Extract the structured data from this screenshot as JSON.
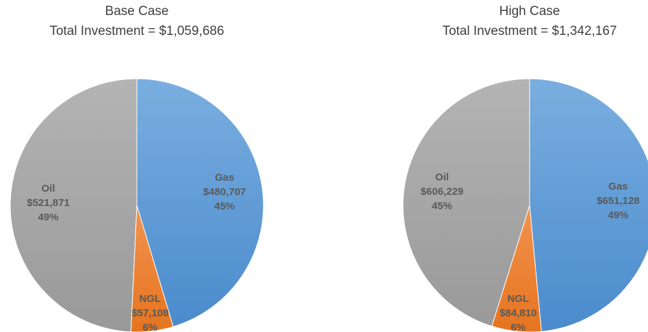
{
  "chart_data": [
    {
      "type": "pie",
      "title": "Base Case",
      "subtitle": "Total Investment = $1,059,686",
      "categories": [
        "Gas",
        "NGL",
        "Oil"
      ],
      "values": [
        480707,
        57108,
        521871
      ],
      "value_labels": [
        "$480,707",
        "$57,108",
        "$521,871"
      ],
      "percents": [
        45,
        6,
        49
      ],
      "percent_labels": [
        "45%",
        "6%",
        "49%"
      ],
      "colors": [
        "#5b9bd5",
        "#ed7d31",
        "#a5a5a5"
      ]
    },
    {
      "type": "pie",
      "title": "High Case",
      "subtitle": "Total Investment = $1,342,167",
      "categories": [
        "Gas",
        "NGL",
        "Oil"
      ],
      "values": [
        651128,
        84810,
        606229
      ],
      "value_labels": [
        "$651,128",
        "$84,810",
        "$606,229"
      ],
      "percents": [
        49,
        6,
        45
      ],
      "percent_labels": [
        "49%",
        "6%",
        "45%"
      ],
      "colors": [
        "#5b9bd5",
        "#ed7d31",
        "#a5a5a5"
      ]
    }
  ]
}
